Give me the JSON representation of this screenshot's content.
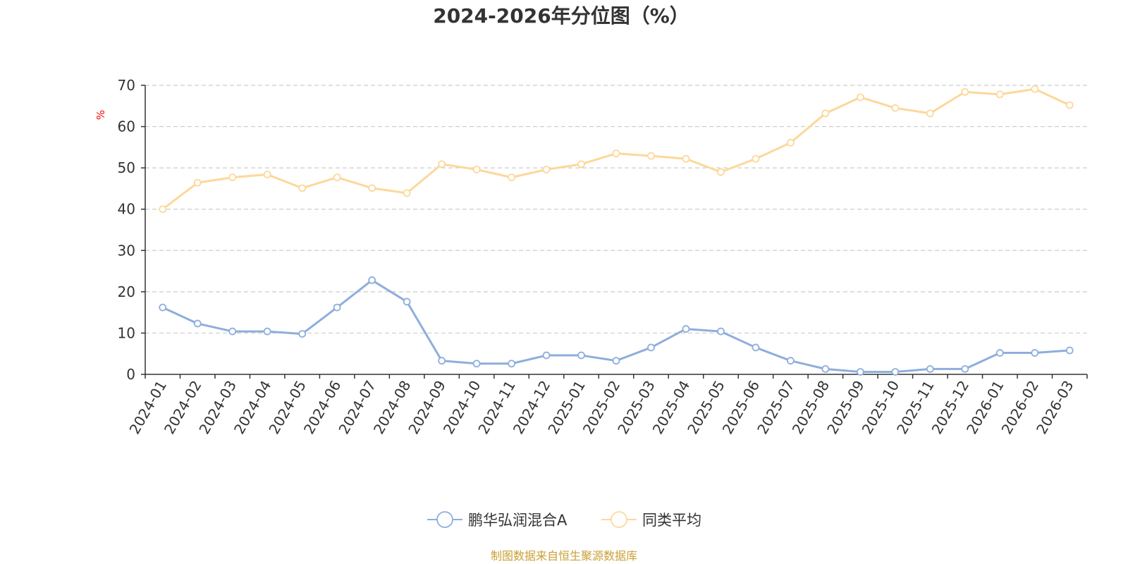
{
  "chart_data": {
    "type": "line",
    "title": "2024-2026年分位图（%）",
    "ylabel": "%",
    "xlabel": "",
    "ylim": [
      0,
      70
    ],
    "yticks": [
      0,
      10,
      20,
      30,
      40,
      50,
      60,
      70
    ],
    "grid": true,
    "legend_position": "bottom",
    "categories": [
      "2024-01",
      "2024-02",
      "2024-03",
      "2024-04",
      "2024-05",
      "2024-06",
      "2024-07",
      "2024-08",
      "2024-09",
      "2024-10",
      "2024-11",
      "2024-12",
      "2025-01",
      "2025-02",
      "2025-03",
      "2025-04",
      "2025-05",
      "2025-06",
      "2025-07",
      "2025-08",
      "2025-09",
      "2025-10",
      "2025-11",
      "2025-12",
      "2026-01",
      "2026-02",
      "2026-03"
    ],
    "series": [
      {
        "name": "鹏华弘润混合A",
        "color": "#8eaedc",
        "values": [
          16.2,
          12.3,
          10.4,
          10.4,
          9.8,
          16.2,
          22.8,
          17.6,
          3.3,
          2.6,
          2.6,
          4.6,
          4.6,
          3.3,
          6.5,
          11.0,
          10.4,
          6.5,
          3.3,
          1.3,
          0.6,
          0.6,
          1.3,
          1.3,
          5.2,
          5.2,
          5.8
        ]
      },
      {
        "name": "同类平均",
        "color": "#fcd89a",
        "values": [
          40.0,
          46.4,
          47.7,
          48.4,
          45.1,
          47.7,
          45.1,
          43.9,
          50.9,
          49.6,
          47.7,
          49.6,
          50.9,
          53.5,
          52.9,
          52.2,
          49.0,
          52.2,
          56.1,
          63.2,
          67.1,
          64.5,
          63.2,
          68.4,
          67.8,
          69.1,
          65.2
        ]
      }
    ]
  },
  "source_note": "制图数据来自恒生聚源数据库",
  "colors": {
    "axis": "#333333",
    "grid": "#cccccc",
    "unit": "#ff0000",
    "source": "#c9a035"
  }
}
